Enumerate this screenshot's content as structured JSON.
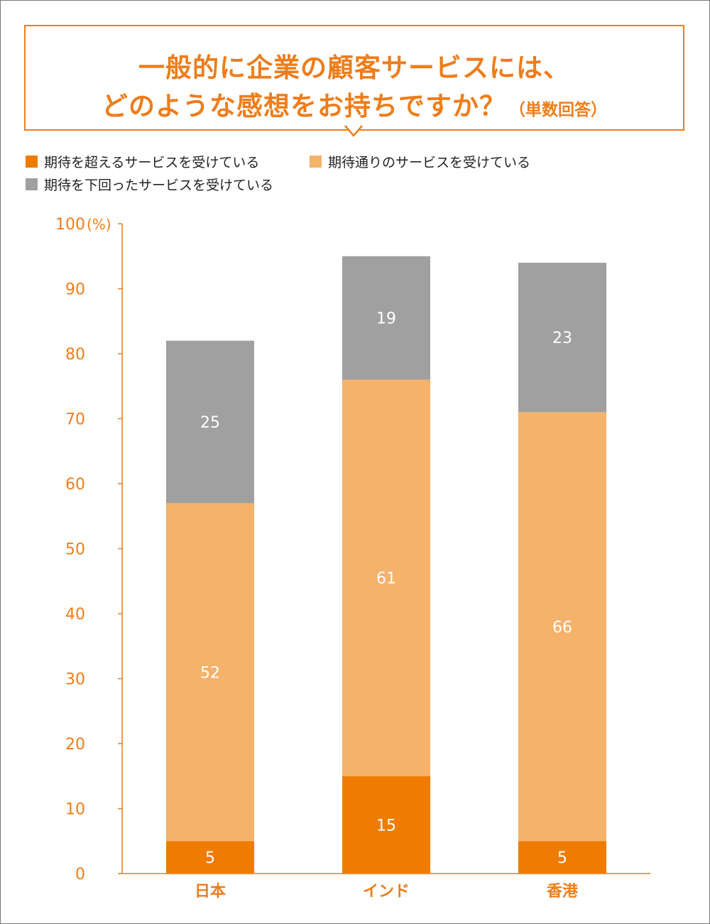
{
  "title": {
    "line1": "一般的に企業の顧客サービスには、",
    "line2": "どのような感想をお持ちですか？",
    "note": "（単数回答）"
  },
  "colors": {
    "accent": "#ee7d1a",
    "exceed": "#ef7c00",
    "meet": "#f5b26b",
    "below": "#a0a0a0"
  },
  "legend": [
    {
      "label": "期待を超えるサービスを受けている",
      "color": "#ef7c00"
    },
    {
      "label": "期待通りのサービスを受けている",
      "color": "#f5b26b"
    },
    {
      "label": "期待を下回ったサービスを受けている",
      "color": "#a0a0a0"
    }
  ],
  "chart_data": {
    "type": "bar",
    "stacked": true,
    "categories": [
      "日本",
      "インド",
      "香港"
    ],
    "series": [
      {
        "name": "期待を超えるサービスを受けている",
        "values": [
          5,
          15,
          5
        ]
      },
      {
        "name": "期待通りのサービスを受けている",
        "values": [
          52,
          61,
          66
        ]
      },
      {
        "name": "期待を下回ったサービスを受けている",
        "values": [
          25,
          19,
          23
        ]
      }
    ],
    "ylim": [
      0,
      100
    ],
    "yticks": [
      0,
      10,
      20,
      30,
      40,
      50,
      60,
      70,
      80,
      90,
      100
    ],
    "yunit": "(%)",
    "grid": false,
    "legend_position": "top-left"
  }
}
